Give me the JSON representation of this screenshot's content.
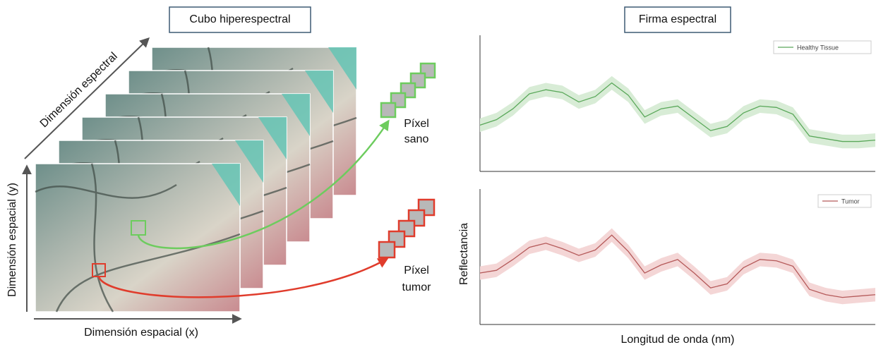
{
  "left_panel": {
    "title": "Cubo hiperespectral",
    "axis_spectral": "Dimensión espectral",
    "axis_y": "Dimensión espacial (y)",
    "axis_x": "Dimensión espacial (x)",
    "pixel_healthy": [
      "Píxel",
      "sano"
    ],
    "pixel_tumor": [
      "Píxel",
      "tumor"
    ]
  },
  "right_panel": {
    "title": "Firma espectral",
    "y_label": "Reflectancia",
    "x_label": "Longitud de onda (nm)"
  },
  "chart_data": [
    {
      "type": "line",
      "ylim": [
        0,
        100
      ],
      "legend": "upper right",
      "series": [
        {
          "name": "Healthy Tissue",
          "color": "#5aa85a",
          "band_color": "#d8ecd6",
          "values": [
            34,
            38,
            46,
            57,
            60,
            58,
            51,
            55,
            65,
            56,
            40,
            46,
            48,
            39,
            30,
            33,
            43,
            48,
            47,
            42,
            26,
            24,
            22,
            22,
            23
          ],
          "error": 5
        }
      ]
    },
    {
      "type": "line",
      "ylim": [
        0,
        100
      ],
      "legend": "upper right",
      "series": [
        {
          "name": "Tumor",
          "color": "#b55a5a",
          "band_color": "#f4d6d6",
          "values": [
            38,
            40,
            48,
            57,
            60,
            56,
            51,
            55,
            66,
            54,
            38,
            44,
            48,
            38,
            27,
            30,
            42,
            48,
            47,
            43,
            26,
            22,
            20,
            21,
            22
          ],
          "error": 5
        }
      ]
    }
  ]
}
